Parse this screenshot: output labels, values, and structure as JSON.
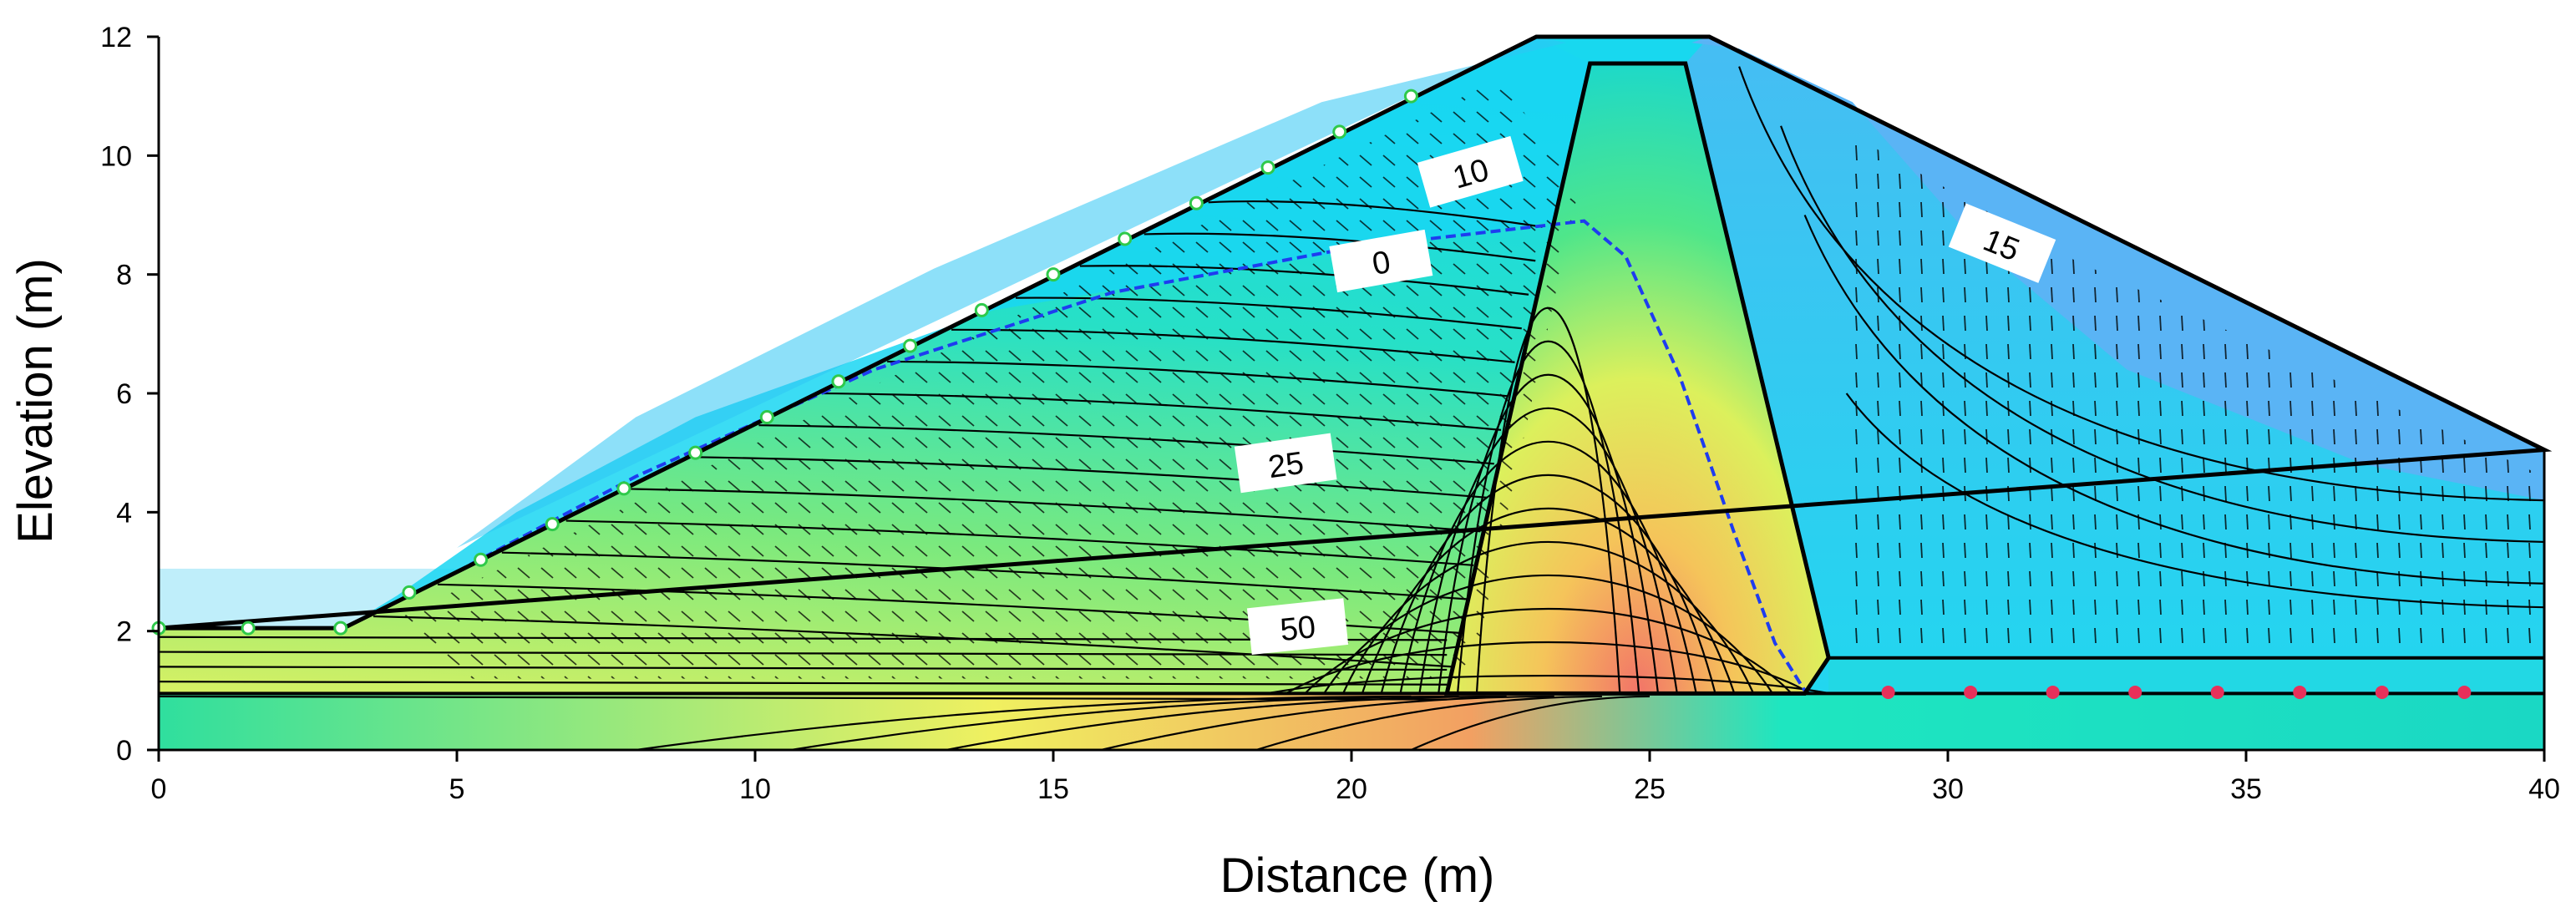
{
  "figure": {
    "xlabel": "Distance (m)",
    "ylabel": "Elevation (m)",
    "x_range": [
      0,
      40
    ],
    "y_range": [
      0,
      12
    ],
    "x_ticks": [
      "0",
      "5",
      "10",
      "15",
      "20",
      "25",
      "30",
      "35",
      "40"
    ],
    "y_ticks": [
      "0",
      "2",
      "4",
      "6",
      "8",
      "10",
      "12"
    ],
    "contour_labels": [
      "10",
      "0",
      "25",
      "50",
      "15"
    ]
  },
  "colors": {
    "high_head": "#f57a6e",
    "mid_head": "#f2f05a",
    "low_mid": "#4fe88a",
    "low_head": "#19dde8",
    "dry_zone": "#5ab4f5",
    "reservoir": "#bfeefa",
    "phreatic_line": "#1e3cf0",
    "upstream_boundary_marker": "#2fc94a",
    "downstream_boundary_marker": "#e8305a"
  }
}
